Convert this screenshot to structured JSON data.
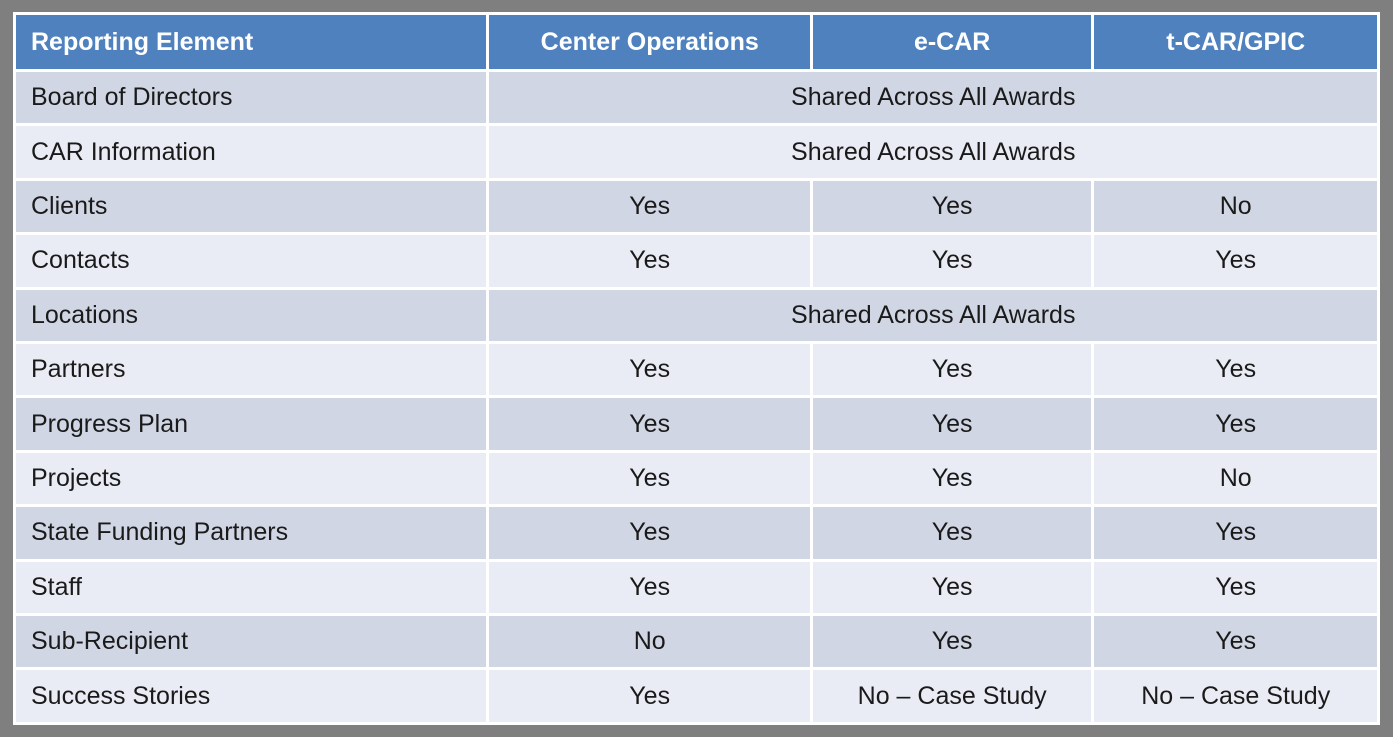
{
  "colors": {
    "frame": "#7f7f7f",
    "header_bg": "#4e81bd",
    "header_text": "#ffffff",
    "band_dark": "#d0d6e4",
    "band_light": "#e9ecf4",
    "body_text": "#1a1a1a",
    "grid_white": "#ffffff"
  },
  "table": {
    "columns": [
      "Reporting Element",
      "Center Operations",
      "e-CAR",
      "t-CAR/GPIC"
    ],
    "rows": [
      {
        "label": "Board of Directors",
        "merged": "Shared Across All Awards"
      },
      {
        "label": "CAR Information",
        "merged": "Shared Across All Awards"
      },
      {
        "label": "Clients",
        "values": [
          "Yes",
          "Yes",
          "No"
        ]
      },
      {
        "label": "Contacts",
        "values": [
          "Yes",
          "Yes",
          "Yes"
        ]
      },
      {
        "label": "Locations",
        "merged": "Shared Across All Awards"
      },
      {
        "label": "Partners",
        "values": [
          "Yes",
          "Yes",
          "Yes"
        ]
      },
      {
        "label": "Progress Plan",
        "values": [
          "Yes",
          "Yes",
          "Yes"
        ]
      },
      {
        "label": "Projects",
        "values": [
          "Yes",
          "Yes",
          "No"
        ]
      },
      {
        "label": "State Funding Partners",
        "values": [
          "Yes",
          "Yes",
          "Yes"
        ]
      },
      {
        "label": "Staff",
        "values": [
          "Yes",
          "Yes",
          "Yes"
        ]
      },
      {
        "label": "Sub-Recipient",
        "values": [
          "No",
          "Yes",
          "Yes"
        ]
      },
      {
        "label": "Success Stories",
        "values": [
          "Yes",
          "No – Case Study",
          "No – Case Study"
        ]
      }
    ]
  }
}
